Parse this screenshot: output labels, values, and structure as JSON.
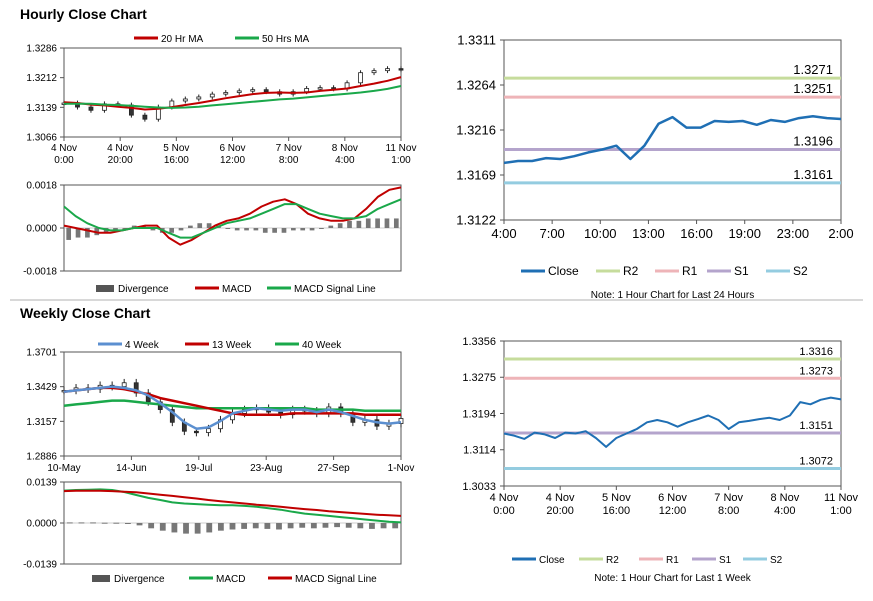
{
  "sections": {
    "hourly_title": "Hourly Close Chart",
    "weekly_title": "Weekly Close Chart"
  },
  "colors": {
    "ma_short": "#c00000",
    "ma_long": "#1aa84a",
    "close": "#1f6fb4",
    "r2": "#c6dc9c",
    "r1": "#eeb4b8",
    "s1": "#b4a4cc",
    "s2": "#94cce0",
    "divergence": "#777777",
    "week4": "#5b8fd0",
    "week13": "#c00000",
    "week40": "#1aa84a"
  },
  "chart_data": [
    {
      "id": "hourly-price",
      "type": "line",
      "title": "Hourly Close Chart",
      "legend": [
        "20 Hr MA",
        "50 Hrs MA"
      ],
      "yticks": [
        "1.3286",
        "1.3212",
        "1.3139",
        "1.3066"
      ],
      "ylim": [
        1.3066,
        1.3286
      ],
      "xticks": [
        {
          "line1": "4 Nov",
          "line2": "0:00"
        },
        {
          "line1": "4 Nov",
          "line2": "20:00"
        },
        {
          "line1": "5 Nov",
          "line2": "16:00"
        },
        {
          "line1": "6 Nov",
          "line2": "12:00"
        },
        {
          "line1": "7 Nov",
          "line2": "8:00"
        },
        {
          "line1": "8 Nov",
          "line2": "4:00"
        },
        {
          "line1": "11 Nov",
          "line2": "1:00"
        }
      ],
      "series": [
        {
          "name": "Close",
          "values": [
            1.315,
            1.314,
            1.3132,
            1.3148,
            1.3145,
            1.312,
            1.311,
            1.314,
            1.3155,
            1.316,
            1.3165,
            1.3172,
            1.3176,
            1.318,
            1.3183,
            1.3178,
            1.3172,
            1.3178,
            1.3186,
            1.3188,
            1.3185,
            1.32,
            1.3225,
            1.323,
            1.3235,
            1.3232
          ]
        },
        {
          "name": "20 Hr MA",
          "values": [
            1.3152,
            1.315,
            1.3146,
            1.3144,
            1.3141,
            1.3138,
            1.3134,
            1.3136,
            1.314,
            1.3145,
            1.315,
            1.3156,
            1.3162,
            1.3167,
            1.3172,
            1.3175,
            1.3176,
            1.3175,
            1.3176,
            1.318,
            1.3183,
            1.3186,
            1.3192,
            1.3198,
            1.3205,
            1.3214
          ]
        },
        {
          "name": "50 Hrs MA",
          "values": [
            1.3148,
            1.3148,
            1.3148,
            1.3146,
            1.3145,
            1.3143,
            1.3141,
            1.3139,
            1.3138,
            1.3139,
            1.3141,
            1.3144,
            1.3147,
            1.315,
            1.3153,
            1.3156,
            1.3159,
            1.3161,
            1.3164,
            1.3167,
            1.317,
            1.3173,
            1.3176,
            1.318,
            1.3185,
            1.3192
          ]
        }
      ]
    },
    {
      "id": "hourly-macd",
      "type": "bar",
      "legend": [
        "Divergence",
        "MACD",
        "MACD Signal Line"
      ],
      "yticks": [
        "0.0018",
        "0.0000",
        "-0.0018"
      ],
      "ylim": [
        -0.0018,
        0.0018
      ],
      "series": [
        {
          "name": "Divergence",
          "values": [
            -0.0005,
            -0.0004,
            -0.0004,
            -0.0003,
            -0.0002,
            -0.0001,
            0.0,
            0.0001,
            0.0001,
            -0.0001,
            -0.0002,
            -0.0002,
            -0.0001,
            0.0001,
            0.0002,
            0.0002,
            0.0001,
            0.0,
            -0.0001,
            -0.0001,
            -0.0001,
            -0.0002,
            -0.0002,
            -0.0002,
            -0.0001,
            -0.0001,
            -0.0001,
            0.0,
            0.0001,
            0.0002,
            0.0003,
            0.0003,
            0.0004,
            0.0004,
            0.0004,
            0.0004
          ]
        },
        {
          "name": "MACD",
          "values": [
            0.0001,
            0.0,
            -0.0001,
            -0.0002,
            -0.0002,
            -0.0001,
            0.0,
            0.0001,
            0.0001,
            -0.0004,
            -0.0007,
            -0.0005,
            -0.0002,
            0.0001,
            0.0003,
            0.0004,
            0.0006,
            0.0009,
            0.0011,
            0.0012,
            0.001,
            0.0006,
            0.0004,
            0.0003,
            0.0003,
            0.0004,
            0.0008,
            0.0013,
            0.0016,
            0.0017
          ]
        },
        {
          "name": "MACD Signal Line",
          "values": [
            0.0009,
            0.0005,
            0.0002,
            0.0,
            -0.0001,
            -0.0001,
            0.0,
            0.0,
            0.0,
            -0.0002,
            -0.0004,
            -0.0004,
            -0.0002,
            0.0,
            0.0002,
            0.0003,
            0.0004,
            0.0006,
            0.0008,
            0.001,
            0.001,
            0.0008,
            0.0006,
            0.0005,
            0.0004,
            0.0004,
            0.0005,
            0.0008,
            0.001,
            0.0012
          ]
        }
      ]
    },
    {
      "id": "hourly-pivots",
      "type": "line",
      "yticks": [
        "1.3311",
        "1.3264",
        "1.3216",
        "1.3169",
        "1.3122"
      ],
      "ylim": [
        1.3122,
        1.3311
      ],
      "xticks": [
        "4:00",
        "7:00",
        "10:00",
        "13:00",
        "16:00",
        "19:00",
        "23:00",
        "2:00"
      ],
      "legend": [
        "Close",
        "R2",
        "R1",
        "S1",
        "S2"
      ],
      "levels": [
        {
          "name": "R2",
          "value": 1.3271,
          "label": "1.3271"
        },
        {
          "name": "R1",
          "value": 1.3251,
          "label": "1.3251"
        },
        {
          "name": "S1",
          "value": 1.3196,
          "label": "1.3196"
        },
        {
          "name": "S2",
          "value": 1.3161,
          "label": "1.3161"
        }
      ],
      "series": [
        {
          "name": "Close",
          "values": [
            1.3182,
            1.3184,
            1.3184,
            1.3187,
            1.3186,
            1.3189,
            1.3193,
            1.3196,
            1.32,
            1.3186,
            1.32,
            1.3223,
            1.323,
            1.3219,
            1.3219,
            1.3226,
            1.3225,
            1.3226,
            1.3222,
            1.3227,
            1.3225,
            1.3229,
            1.3231,
            1.3229,
            1.3228
          ]
        }
      ],
      "note": "Note: 1 Hour Chart for Last 24 Hours"
    },
    {
      "id": "weekly-price",
      "type": "line",
      "title": "Weekly Close Chart",
      "legend": [
        "4 Week",
        "13 Week",
        "40 Week"
      ],
      "yticks": [
        "1.3701",
        "1.3429",
        "1.3157",
        "1.2886"
      ],
      "ylim": [
        1.2886,
        1.3701
      ],
      "xticks": [
        "10-May",
        "14-Jun",
        "19-Jul",
        "23-Aug",
        "27-Sep",
        "1-Nov"
      ],
      "series": [
        {
          "name": "Close",
          "values": [
            1.34,
            1.342,
            1.341,
            1.344,
            1.343,
            1.346,
            1.338,
            1.331,
            1.325,
            1.315,
            1.308,
            1.307,
            1.31,
            1.317,
            1.322,
            1.325,
            1.326,
            1.323,
            1.321,
            1.325,
            1.324,
            1.322,
            1.327,
            1.322,
            1.315,
            1.317,
            1.312,
            1.314,
            1.318
          ]
        },
        {
          "name": "4 Week",
          "values": [
            1.339,
            1.34,
            1.341,
            1.342,
            1.343,
            1.342,
            1.34,
            1.336,
            1.33,
            1.323,
            1.315,
            1.31,
            1.311,
            1.316,
            1.322,
            1.324,
            1.326,
            1.325,
            1.324,
            1.325,
            1.325,
            1.323,
            1.325,
            1.323,
            1.32,
            1.317,
            1.315,
            1.314,
            1.315
          ]
        },
        {
          "name": "13 Week",
          "values": [
            1.339,
            1.34,
            1.341,
            1.342,
            1.342,
            1.341,
            1.339,
            1.337,
            1.334,
            1.332,
            1.33,
            1.328,
            1.326,
            1.324,
            1.322,
            1.321,
            1.321,
            1.321,
            1.321,
            1.322,
            1.322,
            1.322,
            1.322,
            1.322,
            1.322,
            1.321,
            1.321,
            1.321,
            1.321
          ]
        },
        {
          "name": "40 Week",
          "values": [
            1.328,
            1.329,
            1.33,
            1.331,
            1.332,
            1.332,
            1.331,
            1.33,
            1.329,
            1.328,
            1.327,
            1.326,
            1.326,
            1.326,
            1.326,
            1.326,
            1.326,
            1.326,
            1.326,
            1.326,
            1.326,
            1.325,
            1.325,
            1.325,
            1.325,
            1.324,
            1.324,
            1.324,
            1.324
          ]
        }
      ]
    },
    {
      "id": "weekly-macd",
      "type": "bar",
      "legend": [
        "Divergence",
        "MACD",
        "MACD Signal Line"
      ],
      "yticks": [
        "0.0139",
        "0.0000",
        "-0.0139"
      ],
      "ylim": [
        -0.0139,
        0.0139
      ],
      "series": [
        {
          "name": "Divergence",
          "values": [
            0.0002,
            0.0002,
            0.0002,
            0.0001,
            0.0001,
            0.0,
            -0.0008,
            -0.0018,
            -0.0026,
            -0.0032,
            -0.0036,
            -0.0036,
            -0.0032,
            -0.0026,
            -0.0022,
            -0.002,
            -0.0018,
            -0.002,
            -0.0022,
            -0.0018,
            -0.0016,
            -0.0018,
            -0.0016,
            -0.0014,
            -0.0016,
            -0.0018,
            -0.002,
            -0.0018,
            -0.0018
          ]
        },
        {
          "name": "MACD",
          "values": [
            0.011,
            0.0112,
            0.0113,
            0.0114,
            0.0112,
            0.0105,
            0.0095,
            0.0085,
            0.0078,
            0.007,
            0.0066,
            0.0064,
            0.0062,
            0.006,
            0.006,
            0.0058,
            0.0055,
            0.005,
            0.0045,
            0.0038,
            0.0032,
            0.0028,
            0.0024,
            0.002,
            0.0016,
            0.0012,
            0.0008,
            0.0004,
            0.0002
          ]
        },
        {
          "name": "MACD Signal Line",
          "values": [
            0.0108,
            0.0109,
            0.0109,
            0.0109,
            0.0108,
            0.0106,
            0.0104,
            0.01,
            0.0096,
            0.0092,
            0.0087,
            0.0083,
            0.0078,
            0.0074,
            0.007,
            0.0066,
            0.0062,
            0.0059,
            0.0055,
            0.0051,
            0.0047,
            0.0044,
            0.004,
            0.0037,
            0.0034,
            0.0031,
            0.0028,
            0.0026,
            0.0024
          ]
        }
      ]
    },
    {
      "id": "weekly-pivots",
      "type": "line",
      "yticks": [
        "1.3356",
        "1.3275",
        "1.3194",
        "1.3114",
        "1.3033"
      ],
      "ylim": [
        1.3033,
        1.3356
      ],
      "xticks": [
        {
          "line1": "4 Nov",
          "line2": "0:00"
        },
        {
          "line1": "4 Nov",
          "line2": "20:00"
        },
        {
          "line1": "5 Nov",
          "line2": "16:00"
        },
        {
          "line1": "6 Nov",
          "line2": "12:00"
        },
        {
          "line1": "7 Nov",
          "line2": "8:00"
        },
        {
          "line1": "8 Nov",
          "line2": "4:00"
        },
        {
          "line1": "11 Nov",
          "line2": "1:00"
        }
      ],
      "legend": [
        "Close",
        "R2",
        "R1",
        "S1",
        "S2"
      ],
      "levels": [
        {
          "name": "R2",
          "value": 1.3316,
          "label": "1.3316"
        },
        {
          "name": "R1",
          "value": 1.3273,
          "label": "1.3273"
        },
        {
          "name": "S1",
          "value": 1.3151,
          "label": "1.3151"
        },
        {
          "name": "S2",
          "value": 1.3072,
          "label": "1.3072"
        }
      ],
      "series": [
        {
          "name": "Close",
          "values": [
            1.315,
            1.3145,
            1.3138,
            1.3152,
            1.3148,
            1.314,
            1.3152,
            1.315,
            1.3155,
            1.314,
            1.312,
            1.314,
            1.315,
            1.316,
            1.3175,
            1.318,
            1.3175,
            1.3165,
            1.3175,
            1.3182,
            1.319,
            1.318,
            1.316,
            1.3175,
            1.3178,
            1.3182,
            1.3185,
            1.318,
            1.319,
            1.322,
            1.3215,
            1.3225,
            1.323,
            1.3226
          ]
        }
      ],
      "note": "Note: 1 Hour Chart for Last 1 Week"
    }
  ]
}
